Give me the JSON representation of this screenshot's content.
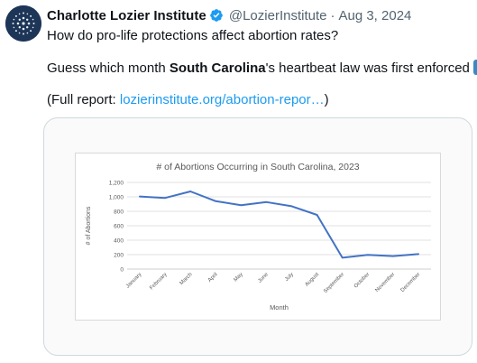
{
  "tweet": {
    "author": "Charlotte Lozier Institute",
    "handle": "@LozierInstitute",
    "separator": "·",
    "date": "Aug 3, 2024",
    "line1": "How do pro-life protections affect abortion rates?",
    "line2_pre": "Guess which month ",
    "line2_state": "South Carolina",
    "line2_post": "'s heartbeat law was first enforced",
    "line3_pre": "(Full report: ",
    "link": "lozierinstitute.org/abortion-repor…",
    "line3_post": ")",
    "icons": [
      "institute-logo-avatar",
      "verified-badge-icon",
      "down-arrow-emoji-icon"
    ],
    "colors": {
      "verified": "#1d9bf0",
      "link": "#1d9bf0",
      "emoji": "#3b88c3"
    }
  },
  "chart_data": {
    "type": "line",
    "title": "# of Abortions Occurring in South Carolina, 2023",
    "xlabel": "Month",
    "ylabel": "# of Abortions",
    "categories": [
      "January",
      "February",
      "March",
      "April",
      "May",
      "June",
      "July",
      "August",
      "September",
      "October",
      "November",
      "December"
    ],
    "values": [
      1005,
      985,
      1075,
      940,
      885,
      928,
      870,
      750,
      158,
      198,
      180,
      208
    ],
    "yticks": [
      "0",
      "200",
      "400",
      "600",
      "800",
      "1,000",
      "1,200"
    ],
    "ylim": [
      0,
      1200
    ],
    "grid": true,
    "color": "#4472c4"
  }
}
